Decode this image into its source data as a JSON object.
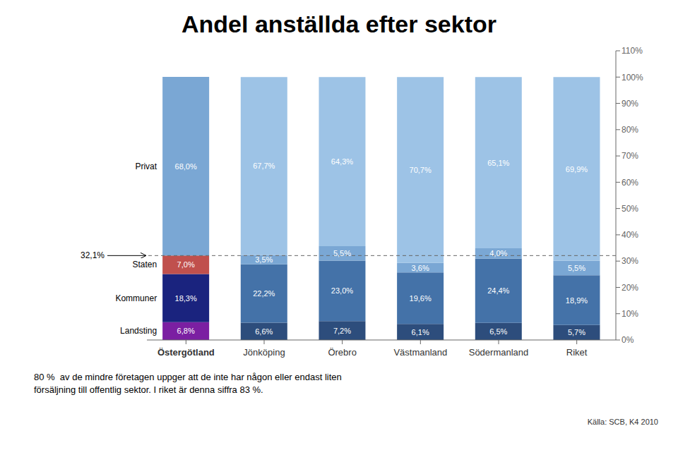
{
  "chart_data": {
    "type": "bar",
    "title": "Andel anställda efter sektor",
    "stacked": true,
    "data_labels": true,
    "grid": false,
    "categories": [
      "Östergötland",
      "Jönköping",
      "Örebro",
      "Västmanland",
      "Södermanland",
      "Riket"
    ],
    "series": [
      {
        "name": "Landsting",
        "colors": [
          "#7B1FA2",
          "#2D4D7C",
          "#2D4D7C",
          "#2D4D7C",
          "#2D4D7C",
          "#2D4D7C"
        ],
        "values": [
          6.8,
          6.6,
          7.2,
          6.1,
          6.5,
          5.7
        ],
        "value_labels": [
          "6,8%",
          "6,6%",
          "7,2%",
          "6,1%",
          "6,5%",
          "5,7%"
        ]
      },
      {
        "name": "Kommuner",
        "colors": [
          "#1A237E",
          "#4472A8",
          "#4472A8",
          "#4472A8",
          "#4472A8",
          "#4472A8"
        ],
        "values": [
          18.3,
          22.2,
          23.0,
          19.6,
          24.4,
          18.9
        ],
        "value_labels": [
          "18,3%",
          "22,2%",
          "23,0%",
          "19,6%",
          "24,4%",
          "18,9%"
        ]
      },
      {
        "name": "Staten",
        "colors": [
          "#C0504D",
          "#7AA7D4",
          "#7AA7D4",
          "#7AA7D4",
          "#7AA7D4",
          "#7AA7D4"
        ],
        "values": [
          7.0,
          3.5,
          5.5,
          3.6,
          4.0,
          5.5
        ],
        "value_labels": [
          "7,0%",
          "3,5%",
          "5,5%",
          "3,6%",
          "4,0%",
          "5,5%"
        ]
      },
      {
        "name": "Privat",
        "colors": [
          "#7AA7D4",
          "#9DC3E6",
          "#9DC3E6",
          "#9DC3E6",
          "#9DC3E6",
          "#9DC3E6"
        ],
        "values": [
          68.0,
          67.7,
          64.3,
          70.7,
          65.1,
          69.9
        ],
        "value_labels": [
          "68,0%",
          "67,7%",
          "64,3%",
          "70,7%",
          "65,1%",
          "69,9%"
        ]
      }
    ],
    "ylim": [
      0,
      110
    ],
    "yticks": [
      {
        "value": 0,
        "label": "0%"
      },
      {
        "value": 10,
        "label": "10%"
      },
      {
        "value": 20,
        "label": "20%"
      },
      {
        "value": 30,
        "label": "30%"
      },
      {
        "value": 40,
        "label": "40%"
      },
      {
        "value": 50,
        "label": "50%"
      },
      {
        "value": 60,
        "label": "60%"
      },
      {
        "value": 70,
        "label": "70%"
      },
      {
        "value": 80,
        "label": "80%"
      },
      {
        "value": 90,
        "label": "90%"
      },
      {
        "value": 100,
        "label": "100%"
      },
      {
        "value": 110,
        "label": "110%"
      }
    ],
    "annotations": [
      {
        "label": "32,1%",
        "value": 32.1,
        "line_style": "dashed"
      }
    ],
    "footnote": "80 %  av de mindre företagen uppger att de inte har någon eller endast liten\nförsäljning till offentlig sektor. I riket är denna siffra 83 %.",
    "source": "Källa: SCB, K4 2010"
  }
}
